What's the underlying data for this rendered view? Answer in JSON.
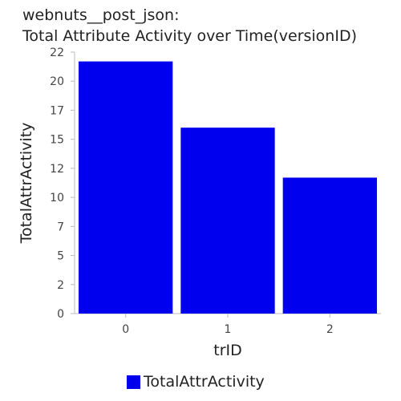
{
  "chart_data": {
    "type": "bar",
    "title_line1": "webnuts__post_json:",
    "title_line2": "Total Attribute Activity over Time(versionID)",
    "xlabel": "trID",
    "ylabel": "TotalAttrActivity",
    "categories": [
      "0",
      "1",
      "2"
    ],
    "series": [
      {
        "name": "TotalAttrActivity",
        "values": [
          21.7,
          16.0,
          11.7
        ],
        "color": "#0000ee"
      }
    ],
    "ylim": [
      0,
      22.5
    ],
    "yticks": [
      0,
      2.5,
      5,
      7.5,
      10,
      12.5,
      15,
      17.5,
      20,
      22.5
    ],
    "ytick_labels": [
      "0",
      "2",
      "5",
      "7",
      "10",
      "12",
      "15",
      "17",
      "20",
      "22"
    ],
    "legend": "bottom-center",
    "grid": false
  }
}
